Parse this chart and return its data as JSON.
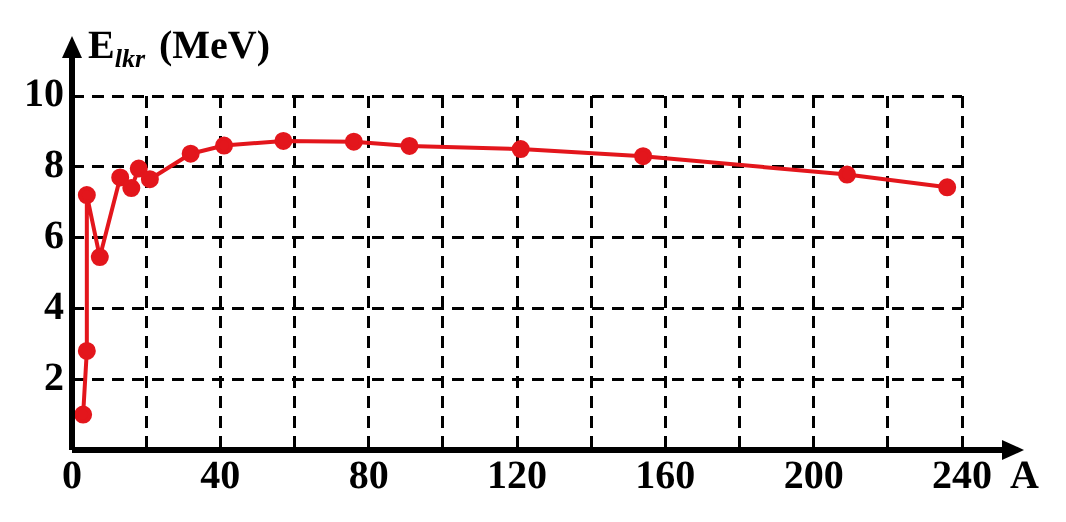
{
  "chart_data": {
    "type": "line",
    "ylabel": "E$_{lkr}$ (MeV)",
    "xlabel": "A",
    "x": [
      3,
      4,
      4,
      7.5,
      13,
      16,
      18,
      21,
      32,
      41,
      57,
      76,
      91,
      121,
      154,
      209,
      236
    ],
    "series": [
      {
        "color": "#e3161c",
        "values": [
          1.0,
          2.8,
          7.2,
          5.45,
          7.7,
          7.4,
          7.95,
          7.65,
          8.37,
          8.6,
          8.73,
          8.71,
          8.59,
          8.5,
          8.3,
          7.78,
          7.42
        ]
      }
    ],
    "xlim": [
      0,
      240
    ],
    "ylim": [
      0,
      10
    ],
    "xticks": [
      0,
      {
        "value": 20,
        "label": null
      },
      40,
      {
        "value": 60,
        "label": null
      },
      80,
      {
        "value": 100,
        "label": null
      },
      120,
      {
        "value": 140,
        "label": null
      },
      160,
      {
        "value": 180,
        "label": null
      },
      200,
      {
        "value": 220,
        "label": null
      },
      240
    ],
    "yticks": [
      2,
      4,
      6,
      8,
      10
    ],
    "grid": true,
    "legend": false,
    "marker": "circle",
    "line_style": "solid"
  }
}
